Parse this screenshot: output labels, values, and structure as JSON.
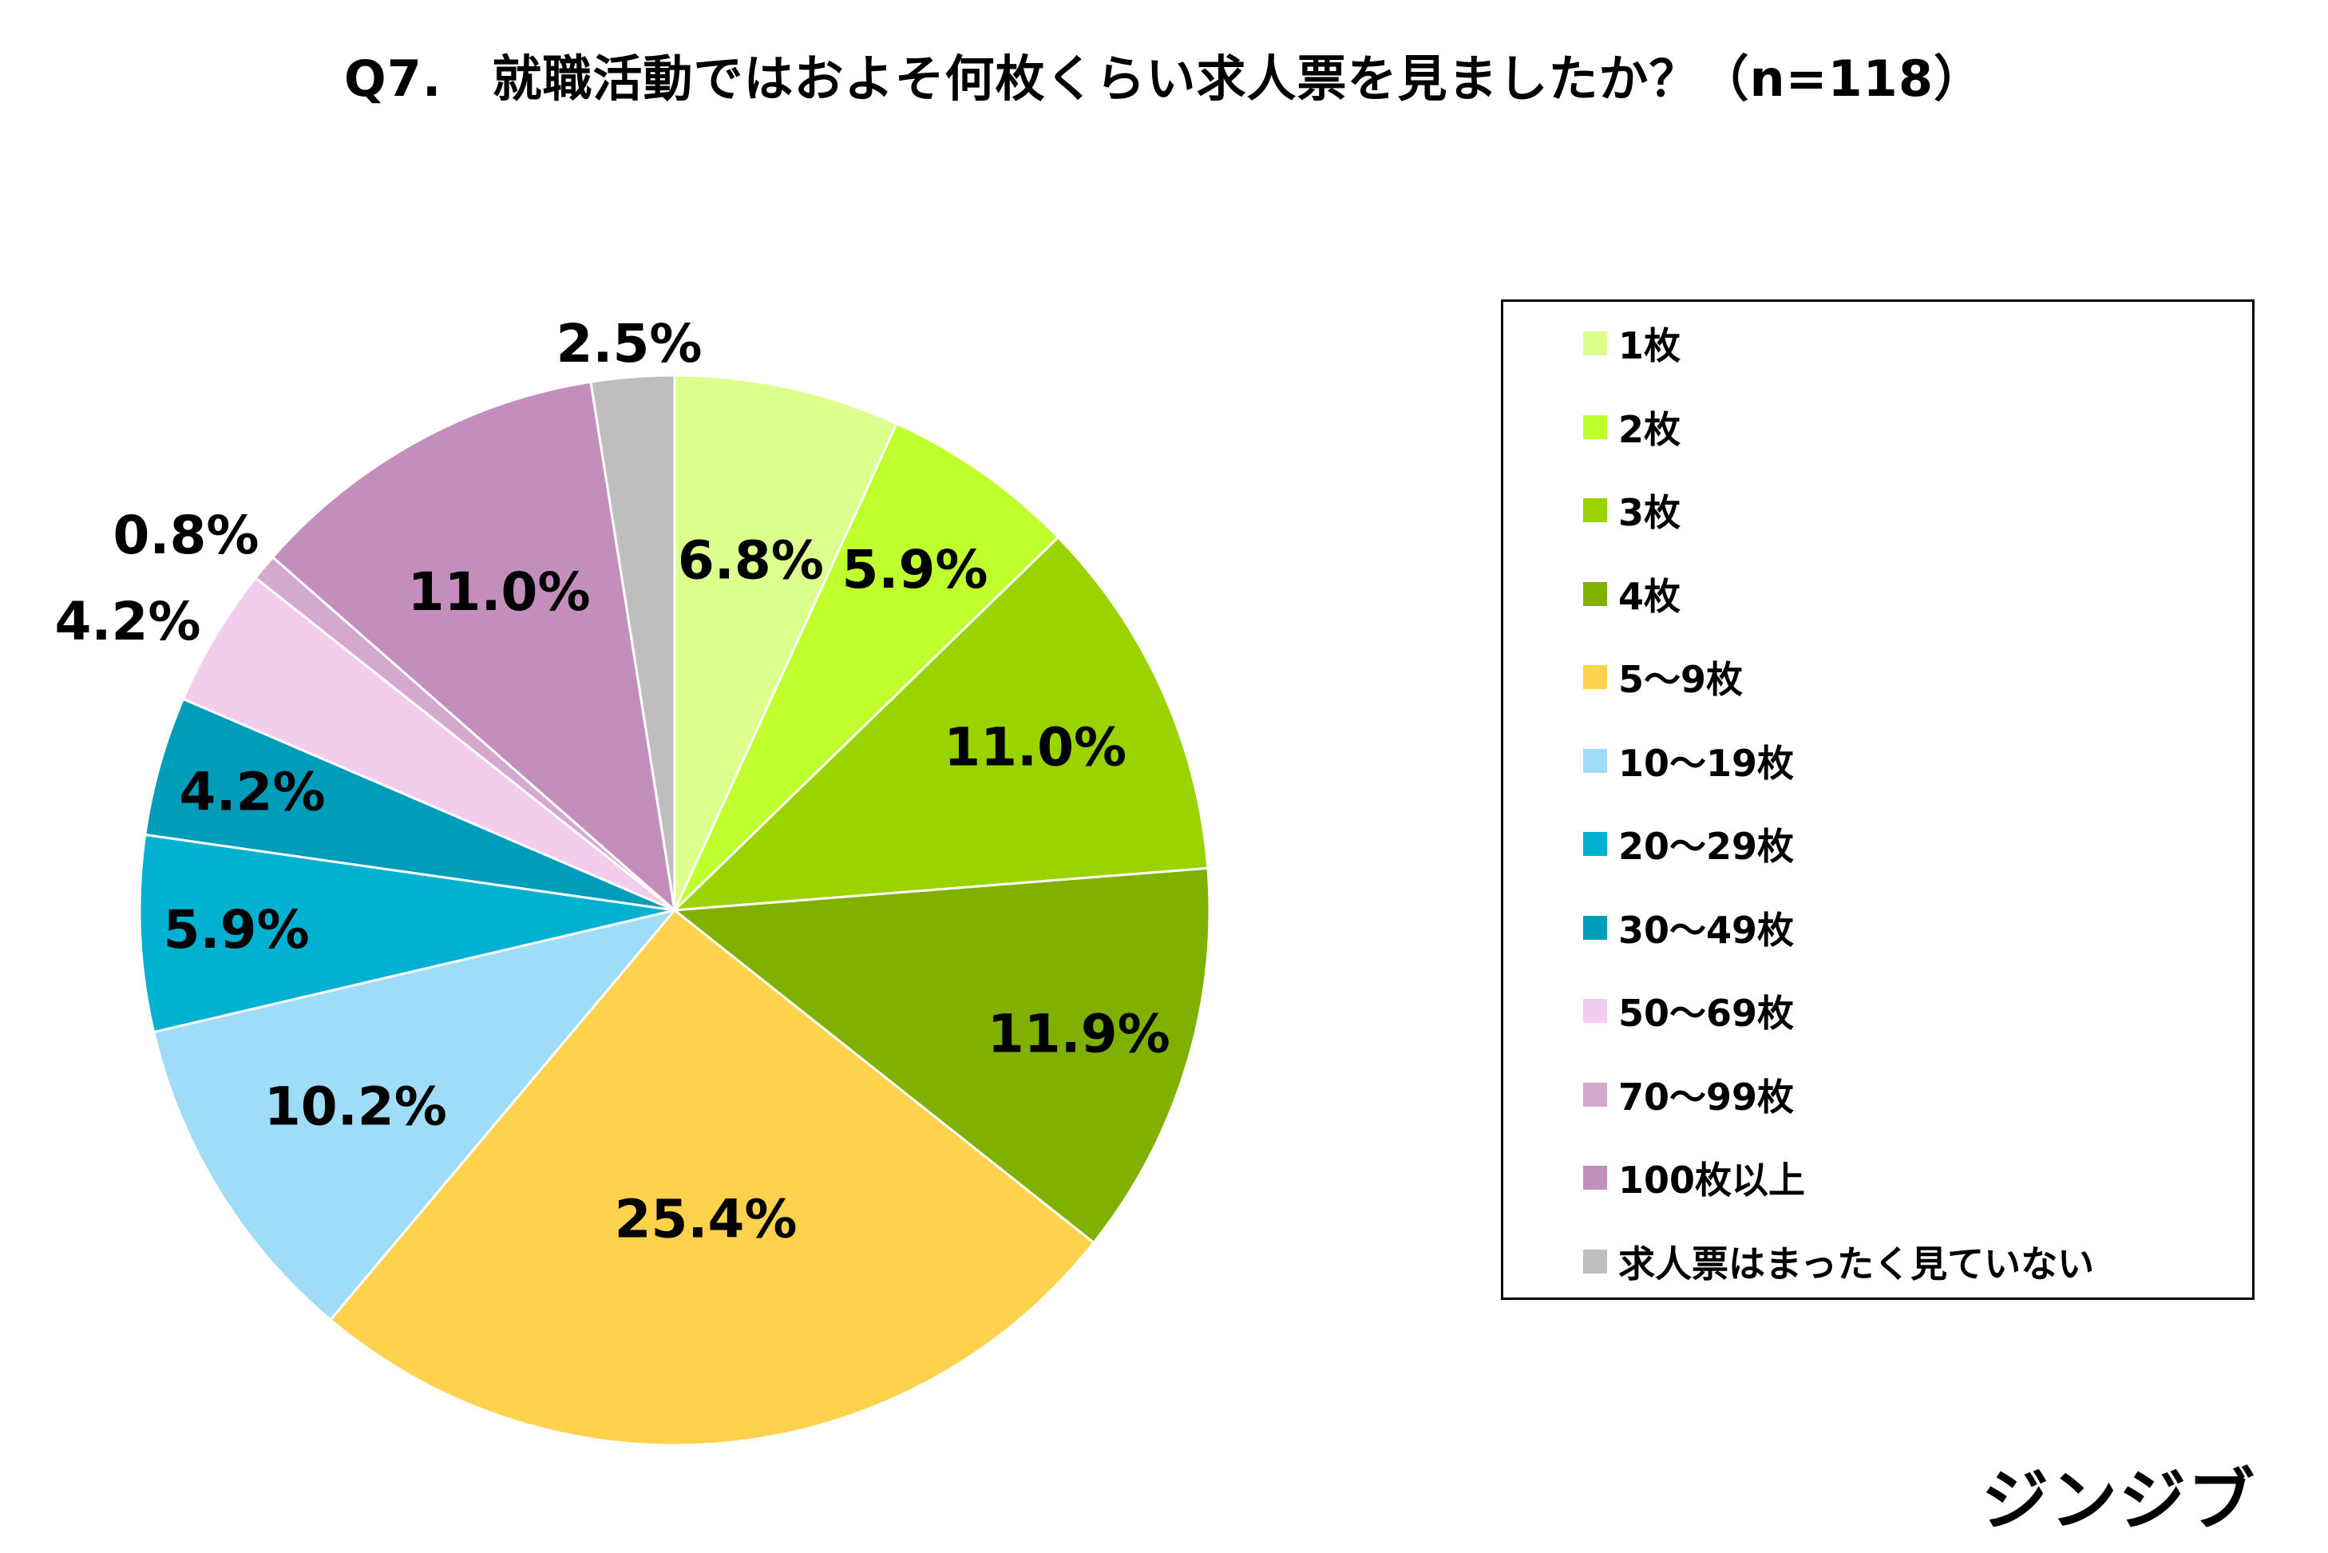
{
  "title": "Q7.　就職活動ではおよそ何枚くらい求人票を見ましたか？（n=118）",
  "brand": "ジンジブ",
  "chart_data": {
    "type": "pie",
    "categories": [
      "1枚",
      "2枚",
      "3枚",
      "4枚",
      "5〜9枚",
      "10〜19枚",
      "20〜29枚",
      "30〜49枚",
      "50〜69枚",
      "70〜99枚",
      "100枚以上",
      "求人票はまったく見ていない"
    ],
    "values": [
      6.8,
      5.9,
      11.0,
      11.9,
      25.4,
      10.2,
      5.9,
      4.2,
      4.2,
      0.8,
      11.0,
      2.5
    ],
    "labels": [
      "6.8%",
      "5.9%",
      "11.0%",
      "11.9%",
      "25.4%",
      "10.2%",
      "5.9%",
      "4.2%",
      "4.2%",
      "0.8%",
      "11.0%",
      "2.5%"
    ],
    "colors": [
      "#DDFF8E",
      "#C0FF2E",
      "#9AD400",
      "#80B000",
      "#FFD24D",
      "#9EDCF8",
      "#00B1D2",
      "#009DBA",
      "#F2CDEE",
      "#D5A8CD",
      "#C38EBB",
      "#BEBEBE"
    ],
    "legend_position": "right",
    "start_angle": "top",
    "direction": "clockwise"
  }
}
